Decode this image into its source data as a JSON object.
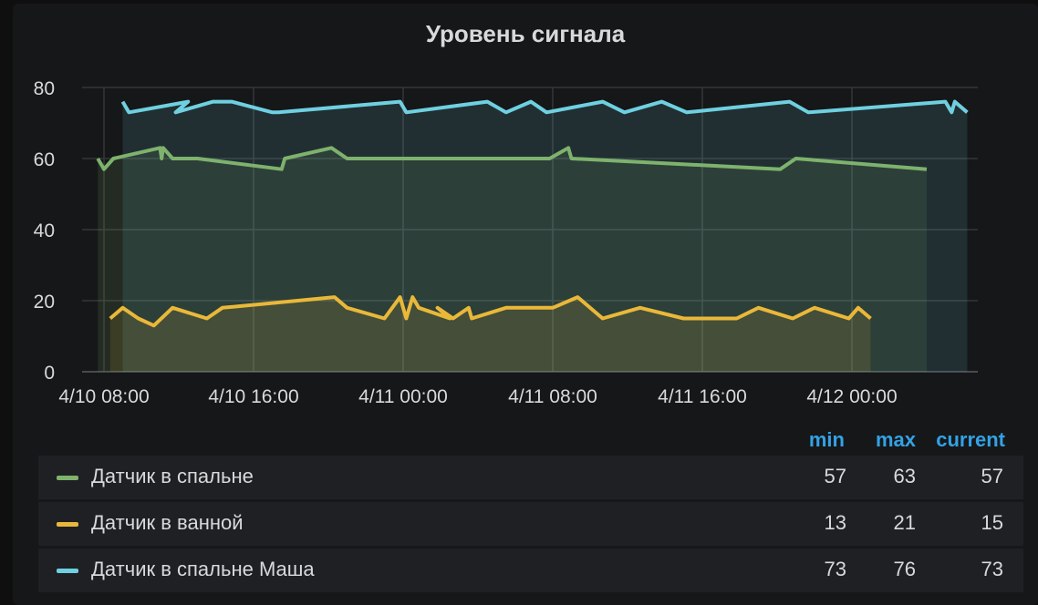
{
  "chart_data": {
    "type": "line",
    "title": "Уровень сигнала",
    "ylim": [
      0,
      80
    ],
    "y_ticks": [
      "0",
      "20",
      "40",
      "60",
      "80"
    ],
    "x_ticks": [
      "4/10 08:00",
      "4/10 16:00",
      "4/11 00:00",
      "4/11 08:00",
      "4/11 16:00",
      "4/12 00:00"
    ],
    "grid": true,
    "legend_placement": "bottom",
    "series": [
      {
        "name": "Датчик в спальне",
        "color": "#7eb26d",
        "min": "57",
        "max": "63",
        "current": "57",
        "points": [
          [
            "4/10 07:40",
            60
          ],
          [
            "4/10 08:00",
            57
          ],
          [
            "4/10 08:30",
            60
          ],
          [
            "4/10 11:00",
            63
          ],
          [
            "4/10 11:05",
            60
          ],
          [
            "4/10 11:10",
            63
          ],
          [
            "4/10 11:40",
            60
          ],
          [
            "4/10 13:00",
            60
          ],
          [
            "4/10 17:30",
            57
          ],
          [
            "4/10 17:40",
            60
          ],
          [
            "4/10 20:10",
            63
          ],
          [
            "4/10 21:00",
            60
          ],
          [
            "4/11 07:50",
            60
          ],
          [
            "4/11 08:50",
            63
          ],
          [
            "4/11 09:00",
            60
          ],
          [
            "4/11 20:10",
            57
          ],
          [
            "4/11 21:00",
            60
          ],
          [
            "4/12 04:00",
            57
          ]
        ]
      },
      {
        "name": "Датчик в ванной",
        "color": "#eab839",
        "min": "13",
        "max": "21",
        "current": "15",
        "points": [
          [
            "4/10 08:20",
            15
          ],
          [
            "4/10 09:00",
            18
          ],
          [
            "4/10 09:50",
            15
          ],
          [
            "4/10 10:40",
            13
          ],
          [
            "4/10 11:40",
            18
          ],
          [
            "4/10 13:30",
            15
          ],
          [
            "4/10 14:20",
            18
          ],
          [
            "4/10 20:20",
            21
          ],
          [
            "4/10 21:00",
            18
          ],
          [
            "4/10 23:00",
            15
          ],
          [
            "4/10 23:50",
            21
          ],
          [
            "4/11 00:10",
            15
          ],
          [
            "4/11 00:30",
            21
          ],
          [
            "4/11 00:50",
            18
          ],
          [
            "4/11 02:30",
            15
          ],
          [
            "4/11 01:50",
            18
          ],
          [
            "4/11 02:40",
            15
          ],
          [
            "4/11 03:30",
            18
          ],
          [
            "4/11 03:40",
            15
          ],
          [
            "4/11 05:30",
            18
          ],
          [
            "4/11 08:00",
            18
          ],
          [
            "4/11 09:20",
            21
          ],
          [
            "4/11 10:40",
            15
          ],
          [
            "4/11 12:40",
            18
          ],
          [
            "4/11 15:00",
            15
          ],
          [
            "4/11 17:50",
            15
          ],
          [
            "4/11 19:00",
            18
          ],
          [
            "4/11 20:50",
            15
          ],
          [
            "4/11 22:00",
            18
          ],
          [
            "4/11 23:50",
            15
          ],
          [
            "4/12 00:20",
            18
          ],
          [
            "4/12 01:00",
            15
          ]
        ]
      },
      {
        "name": "Датчик в спальне Маша",
        "color": "#6ed0e0",
        "min": "73",
        "max": "76",
        "current": "73",
        "points": [
          [
            "4/10 09:00",
            76
          ],
          [
            "4/10 09:20",
            73
          ],
          [
            "4/10 12:30",
            76
          ],
          [
            "4/10 11:50",
            73
          ],
          [
            "4/10 13:50",
            76
          ],
          [
            "4/10 14:50",
            76
          ],
          [
            "4/10 17:00",
            73
          ],
          [
            "4/10 17:20",
            73
          ],
          [
            "4/10 23:50",
            76
          ],
          [
            "4/11 00:10",
            73
          ],
          [
            "4/11 04:30",
            76
          ],
          [
            "4/11 05:30",
            73
          ],
          [
            "4/11 06:50",
            76
          ],
          [
            "4/11 07:40",
            73
          ],
          [
            "4/11 10:40",
            76
          ],
          [
            "4/11 11:50",
            73
          ],
          [
            "4/11 13:50",
            76
          ],
          [
            "4/11 15:10",
            73
          ],
          [
            "4/11 20:40",
            76
          ],
          [
            "4/11 21:40",
            73
          ],
          [
            "4/12 05:00",
            76
          ],
          [
            "4/12 05:20",
            73
          ],
          [
            "4/12 05:30",
            76
          ],
          [
            "4/12 06:10",
            73
          ]
        ]
      }
    ],
    "legend_columns": [
      "min",
      "max",
      "current"
    ]
  }
}
